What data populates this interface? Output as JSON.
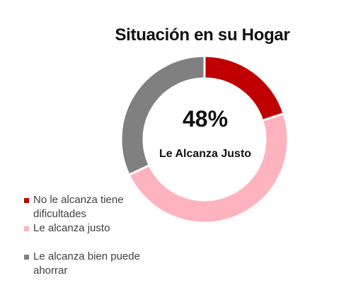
{
  "chart_data": {
    "type": "pie",
    "title": "Situación en su Hogar",
    "donut": true,
    "center_value": "48%",
    "center_label": "Le Alcanza Justo",
    "legend_position": "bottom-left",
    "categories": [
      "No le alcanza tiene dificultades",
      "Le alcanza justo",
      "Le alcanza bien puede ahorrar"
    ],
    "values": [
      20,
      48,
      32
    ],
    "colors": [
      "#c00000",
      "#ffb3bf",
      "#808080"
    ]
  }
}
